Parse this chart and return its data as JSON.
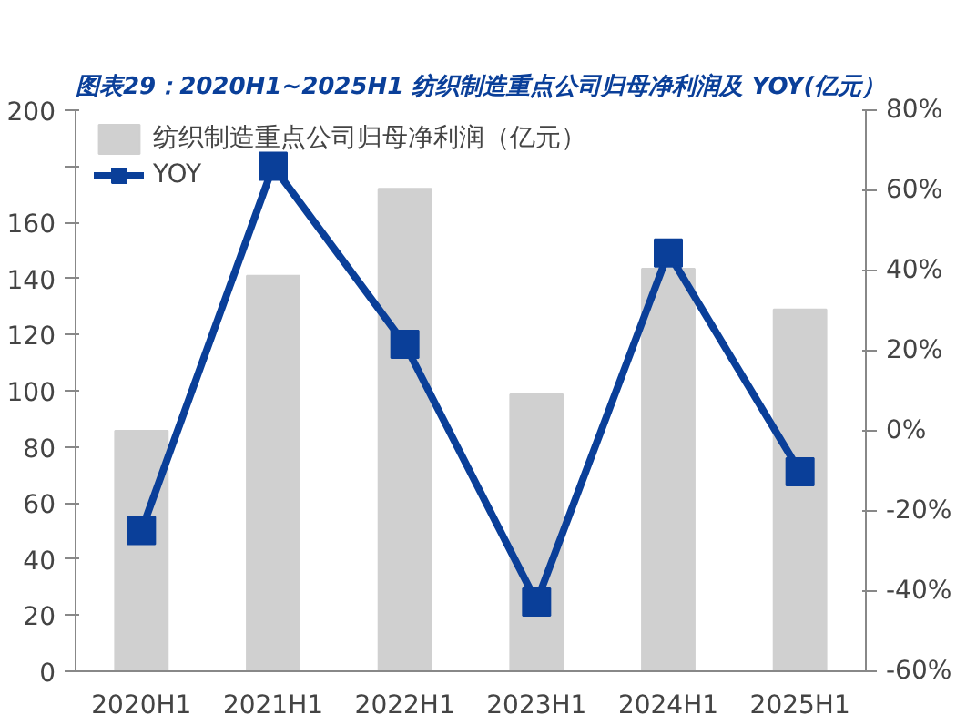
{
  "chart_data": {
    "type": "bar",
    "title": "图表29：2020H1~2025H1 纺织制造重点公司归母净利润及 YOY(亿元）",
    "categories": [
      "2020H1",
      "2021H1",
      "2022H1",
      "2023H1",
      "2024H1",
      "2025H1"
    ],
    "series": [
      {
        "name": "纺织制造重点公司归母净利润（亿元）",
        "color": "#d0d0d0",
        "values": [
          85.7,
          141,
          172,
          98.7,
          143.5,
          129
        ]
      },
      {
        "name": "YOY",
        "type": "line",
        "axis": "y2",
        "color": "#0a3f99",
        "marker": "square",
        "values": [
          -24.9,
          66,
          21.6,
          -42.7,
          44.4,
          -10.2
        ]
      }
    ],
    "ylim": [
      0,
      200
    ],
    "yticks": [
      0,
      20,
      40,
      60,
      80,
      100,
      120,
      140,
      160,
      {
        "value": 180,
        "label": null
      },
      200
    ],
    "y2lim": [
      -60,
      80
    ],
    "y2ticks": [
      {
        "value": -60,
        "label": "-60%"
      },
      {
        "value": -40,
        "label": "-40%"
      },
      {
        "value": -20,
        "label": "-20%"
      },
      {
        "value": 0,
        "label": "0%"
      },
      {
        "value": 20,
        "label": "20%"
      },
      {
        "value": 40,
        "label": "40%"
      },
      {
        "value": 60,
        "label": "60%"
      },
      {
        "value": 80,
        "label": "80%"
      }
    ],
    "grid": false,
    "legend": "top"
  }
}
